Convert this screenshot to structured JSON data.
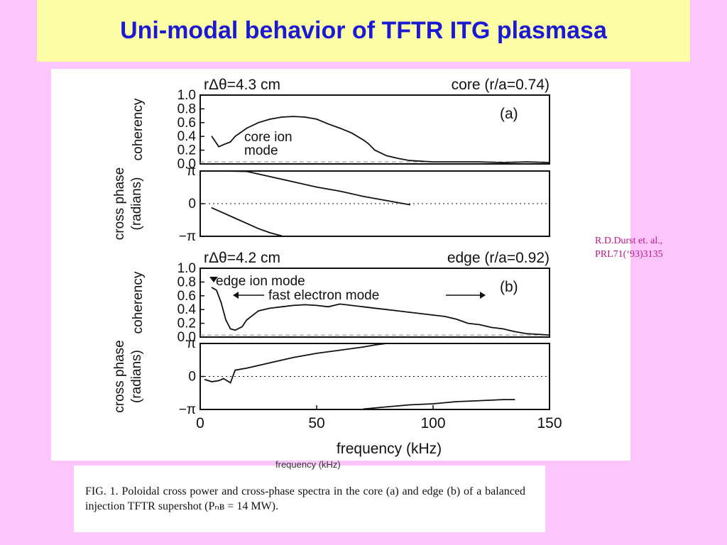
{
  "slide": {
    "title": "Uni-modal behavior of TFTR ITG plasmasa",
    "citation": [
      "R.D.Durst et. al.,",
      "PRL71(‘93)3135"
    ],
    "caption_stray": "frequency (kHz)",
    "caption": "FIG. 1.  Poloidal cross power and cross-phase spectra in the core (a) and edge (b) of a balanced injection TFTR supershot (Pₙʙ = 14 MW).",
    "colors": {
      "background": "#fdc6fb",
      "title_box": "#fefea6",
      "title_text": "#1a1ad6",
      "citation_text": "#c0158c"
    }
  },
  "chart_data": [
    {
      "type": "line",
      "panel": "a-coherency",
      "title": "rΔθ=4.3 cm",
      "title_right": "core (r/a=0.74)",
      "ylabel": "coherency",
      "yticks": [
        "1.0",
        "0.8",
        "0.6",
        "0.4",
        "0.2",
        "0.0"
      ],
      "ylim": [
        0,
        1.0
      ],
      "xlim": [
        0,
        150
      ],
      "panel_label": "(a)",
      "annotation": [
        "core ion",
        "mode"
      ],
      "series": [
        {
          "x": [
            5,
            8,
            10,
            13,
            15,
            20,
            25,
            30,
            35,
            40,
            45,
            50,
            55,
            60,
            65,
            70,
            72,
            75,
            80,
            85,
            90,
            100,
            110,
            120,
            130,
            140,
            150
          ],
          "y": [
            0.4,
            0.25,
            0.28,
            0.32,
            0.4,
            0.52,
            0.6,
            0.65,
            0.68,
            0.69,
            0.68,
            0.65,
            0.58,
            0.52,
            0.45,
            0.35,
            0.3,
            0.2,
            0.12,
            0.08,
            0.05,
            0.03,
            0.03,
            0.03,
            0.02,
            0.03,
            0.02
          ]
        }
      ]
    },
    {
      "type": "line",
      "panel": "a-cross-phase",
      "ylabel": "cross phase (radians)",
      "yticks": [
        "π",
        "0",
        "−π"
      ],
      "ylim": [
        -3.14,
        3.14
      ],
      "xlim": [
        0,
        150
      ],
      "series": [
        {
          "x": [
            10,
            20,
            30,
            40,
            50,
            60,
            70,
            80,
            90
          ],
          "y": [
            3.5,
            3.1,
            2.6,
            2.1,
            1.6,
            1.2,
            0.7,
            0.3,
            -0.1
          ]
        },
        {
          "x": [
            5,
            10,
            15,
            20,
            25,
            30,
            35
          ],
          "y": [
            -0.4,
            -0.9,
            -1.4,
            -1.9,
            -2.4,
            -2.8,
            -3.1
          ]
        }
      ]
    },
    {
      "type": "line",
      "panel": "b-coherency",
      "title": "rΔθ=4.2 cm",
      "title_right": "edge (r/a=0.92)",
      "ylabel": "coherency",
      "yticks": [
        "1.0",
        "0.8",
        "0.6",
        "0.4",
        "0.2",
        "0.0"
      ],
      "ylim": [
        0,
        1.0
      ],
      "xlim": [
        0,
        150
      ],
      "panel_label": "(b)",
      "annotation": [
        "edge ion mode",
        "fast electron mode"
      ],
      "series": [
        {
          "x": [
            5,
            7,
            9,
            11,
            13,
            15,
            18,
            20,
            25,
            30,
            35,
            40,
            45,
            50,
            55,
            60,
            65,
            70,
            75,
            80,
            85,
            90,
            95,
            100,
            105,
            110,
            115,
            120,
            125,
            130,
            135,
            140,
            145,
            150
          ],
          "y": [
            0.72,
            0.68,
            0.5,
            0.25,
            0.12,
            0.1,
            0.15,
            0.25,
            0.38,
            0.42,
            0.44,
            0.46,
            0.47,
            0.46,
            0.44,
            0.48,
            0.46,
            0.44,
            0.42,
            0.4,
            0.38,
            0.36,
            0.34,
            0.32,
            0.3,
            0.26,
            0.2,
            0.18,
            0.14,
            0.12,
            0.08,
            0.05,
            0.04,
            0.03
          ]
        }
      ]
    },
    {
      "type": "line",
      "panel": "b-cross-phase",
      "ylabel": "cross phase (radians)",
      "yticks": [
        "π",
        "0",
        "−π"
      ],
      "ylim": [
        -3.14,
        3.14
      ],
      "xlim": [
        0,
        150
      ],
      "xlabel": "frequency (kHz)",
      "xticks": [
        "0",
        "50",
        "100",
        "150"
      ],
      "series": [
        {
          "x": [
            2,
            5,
            8,
            10,
            13,
            15,
            20,
            30,
            40,
            50,
            60,
            70,
            75,
            80
          ],
          "y": [
            -0.3,
            -0.5,
            -0.4,
            -0.2,
            -0.6,
            0.6,
            0.8,
            1.3,
            1.8,
            2.2,
            2.5,
            2.8,
            3.0,
            3.14
          ]
        },
        {
          "x": [
            70,
            80,
            90,
            100,
            110,
            120,
            130,
            135
          ],
          "y": [
            -3.1,
            -2.9,
            -2.7,
            -2.6,
            -2.4,
            -2.3,
            -2.2,
            -2.2
          ]
        }
      ]
    }
  ]
}
